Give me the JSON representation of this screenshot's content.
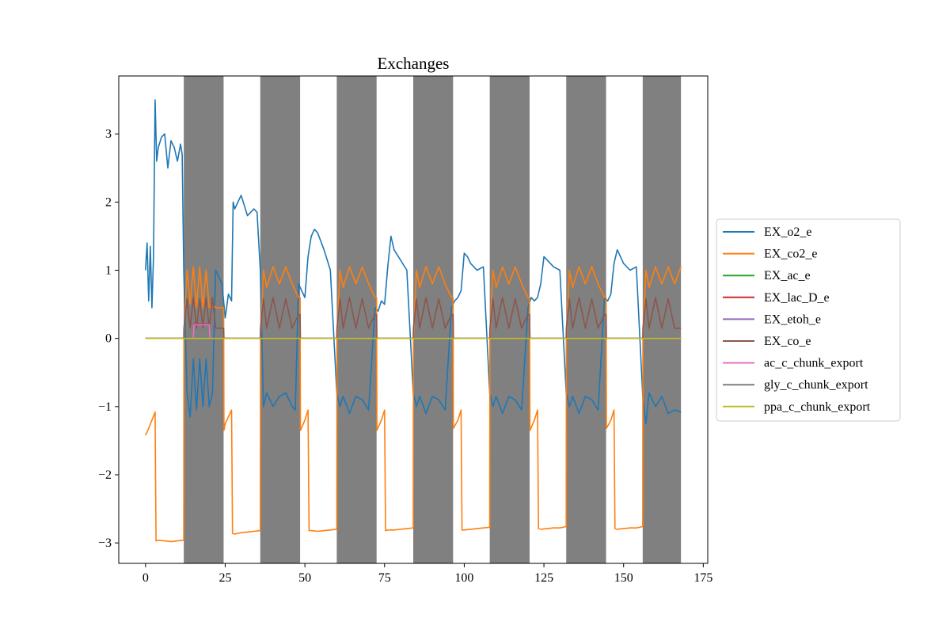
{
  "chart_data": {
    "type": "line",
    "title": "Exchanges",
    "xlabel": "",
    "ylabel": "",
    "xlim": [
      -8.4,
      176.4
    ],
    "ylim": [
      -3.3,
      3.85
    ],
    "xticks": [
      0,
      25,
      50,
      75,
      100,
      125,
      150,
      175
    ],
    "yticks": [
      -3,
      -2,
      -1,
      0,
      1,
      2,
      3
    ],
    "xtick_labels": [
      "0",
      "25",
      "50",
      "75",
      "100",
      "125",
      "150",
      "175"
    ],
    "ytick_labels": [
      "−3",
      "−2",
      "−1",
      "0",
      "1",
      "2",
      "3"
    ],
    "grid": false,
    "legend_position": "center-right outside plot",
    "night_shading": {
      "color": "#808080",
      "intervals": [
        [
          12,
          24.5
        ],
        [
          36,
          48.5
        ],
        [
          60,
          72.5
        ],
        [
          84,
          96.5
        ],
        [
          108,
          120.5
        ],
        [
          132,
          144.5
        ],
        [
          156,
          168
        ]
      ]
    },
    "series": [
      {
        "name": "EX_o2_e",
        "color": "#1f77b4",
        "x": [
          0,
          0.5,
          1,
          1.5,
          2,
          2.5,
          3,
          3.5,
          4,
          5,
          6,
          7,
          8,
          9,
          10,
          11,
          11.5,
          12,
          13,
          14,
          15,
          16,
          17,
          18,
          19,
          20,
          21,
          22,
          24,
          25,
          26,
          27,
          27.5,
          28,
          30,
          32,
          34,
          35,
          36,
          37,
          38,
          40,
          42,
          44,
          46,
          47,
          48,
          50,
          51,
          52,
          53,
          54,
          56,
          58,
          60,
          61,
          62,
          64,
          66,
          68,
          70,
          72,
          73,
          74,
          75,
          76,
          77,
          78,
          80,
          82,
          84,
          85,
          86,
          88,
          90,
          92,
          94,
          96,
          97,
          98,
          99,
          100,
          101,
          102,
          104,
          106,
          108,
          109,
          110,
          112,
          114,
          116,
          118,
          120,
          121,
          122,
          123,
          124,
          125,
          126,
          128,
          130,
          132,
          133,
          134,
          136,
          138,
          140,
          142,
          144,
          145,
          146,
          147,
          148,
          149,
          150,
          152,
          154,
          156,
          157,
          158,
          160,
          162,
          164,
          166,
          168
        ],
        "y": [
          1.0,
          1.4,
          0.55,
          1.35,
          0.45,
          1.2,
          3.5,
          2.6,
          2.8,
          2.95,
          3.0,
          2.5,
          2.9,
          2.8,
          2.6,
          2.85,
          2.7,
          1.0,
          -0.8,
          -1.15,
          -0.3,
          -1.05,
          -0.3,
          -1.0,
          -0.3,
          -1.0,
          -0.8,
          1.0,
          0.8,
          0.3,
          0.65,
          0.55,
          2.0,
          1.9,
          2.1,
          1.8,
          1.9,
          1.85,
          1.0,
          -1.0,
          -0.8,
          -1.0,
          -0.85,
          -0.8,
          -1.0,
          -1.05,
          0.8,
          0.6,
          1.2,
          1.5,
          1.6,
          1.55,
          1.3,
          1.0,
          -0.8,
          -1.0,
          -0.85,
          -1.1,
          -0.85,
          -0.9,
          -1.05,
          0.45,
          0.4,
          0.55,
          0.5,
          1.05,
          1.5,
          1.3,
          1.15,
          1.0,
          -0.8,
          -1.0,
          -0.85,
          -1.1,
          -0.85,
          -0.9,
          -1.05,
          0.45,
          0.55,
          0.6,
          0.7,
          1.25,
          1.2,
          1.1,
          1.0,
          1.05,
          -0.8,
          -1.0,
          -0.85,
          -1.1,
          -0.85,
          -0.9,
          -1.05,
          0.45,
          0.6,
          0.55,
          0.6,
          0.8,
          1.2,
          1.15,
          1.05,
          1.0,
          -0.8,
          -1.0,
          -0.85,
          -1.1,
          -0.85,
          -0.9,
          -1.05,
          0.6,
          0.55,
          0.65,
          1.1,
          1.3,
          1.2,
          1.1,
          1.0,
          1.05,
          -0.85,
          -1.25,
          -0.8,
          -1.0,
          -0.85,
          -1.1,
          -1.05,
          -1.08
        ]
      },
      {
        "name": "EX_co2_e",
        "color": "#ff7f0e",
        "x": [
          0,
          1,
          2,
          3,
          3.3,
          4,
          6,
          8,
          10,
          12,
          12.05,
          13,
          14,
          15,
          16,
          17,
          18,
          19,
          20,
          21,
          22,
          24.5,
          24.6,
          25,
          26,
          27,
          27.3,
          28,
          30,
          32,
          34,
          36,
          36.05,
          37,
          38,
          40,
          42,
          44,
          46,
          48,
          48.5,
          48.6,
          50,
          51,
          51.3,
          52,
          54,
          56,
          58,
          60,
          60.05,
          61,
          62,
          64,
          66,
          68,
          70,
          72,
          72.5,
          72.6,
          74,
          75,
          75.3,
          76,
          78,
          80,
          82,
          84,
          84.05,
          85,
          86,
          88,
          90,
          92,
          94,
          96,
          96.5,
          96.6,
          98,
          99,
          99.3,
          100,
          102,
          104,
          106,
          108,
          108.05,
          109,
          110,
          112,
          114,
          116,
          118,
          120,
          120.5,
          120.6,
          122,
          123,
          123.3,
          124,
          126,
          128,
          130,
          132,
          132.05,
          133,
          134,
          136,
          138,
          140,
          142,
          144,
          144.5,
          144.6,
          146,
          147,
          147.3,
          148,
          150,
          152,
          154,
          156,
          156.05,
          157,
          158,
          160,
          162,
          164,
          166,
          168
        ],
        "y": [
          -1.42,
          -1.32,
          -1.2,
          -1.08,
          -2.97,
          -2.96,
          -2.97,
          -2.98,
          -2.97,
          -2.96,
          0.0,
          1.0,
          0.5,
          1.05,
          0.45,
          1.05,
          0.45,
          1.0,
          0.45,
          0.5,
          0.45,
          0.45,
          -1.35,
          -1.25,
          -1.15,
          -1.05,
          -2.86,
          -2.87,
          -2.85,
          -2.84,
          -2.83,
          -2.82,
          0.0,
          1.0,
          0.75,
          1.05,
          0.8,
          1.05,
          0.8,
          0.6,
          0.6,
          -1.35,
          -1.2,
          -1.05,
          -2.82,
          -2.82,
          -2.83,
          -2.82,
          -2.81,
          -2.8,
          0.0,
          1.0,
          0.75,
          1.05,
          0.8,
          1.05,
          0.8,
          0.6,
          0.6,
          -1.35,
          -1.2,
          -1.05,
          -2.82,
          -2.81,
          -2.81,
          -2.8,
          -2.79,
          -2.78,
          0.0,
          1.0,
          0.75,
          1.05,
          0.8,
          1.05,
          0.8,
          0.6,
          0.6,
          -1.32,
          -1.2,
          -1.05,
          -2.81,
          -2.81,
          -2.8,
          -2.79,
          -2.78,
          -2.77,
          0.0,
          1.0,
          0.75,
          1.05,
          0.8,
          1.05,
          0.8,
          0.6,
          0.6,
          -1.35,
          -1.2,
          -1.05,
          -2.79,
          -2.8,
          -2.79,
          -2.78,
          -2.78,
          -2.76,
          0.0,
          1.0,
          0.75,
          1.05,
          0.8,
          1.05,
          0.8,
          0.6,
          0.6,
          -1.32,
          -1.2,
          -1.05,
          -2.79,
          -2.8,
          -2.79,
          -2.78,
          -2.78,
          -2.76,
          0.0,
          1.0,
          0.75,
          1.05,
          0.8,
          1.05,
          0.8,
          1.05
        ]
      },
      {
        "name": "EX_ac_e",
        "color": "#2ca02c",
        "x": [
          0,
          168
        ],
        "y": [
          0,
          0
        ]
      },
      {
        "name": "EX_lac_D_e",
        "color": "#d62728",
        "x": [
          0,
          15,
          15.2,
          20,
          20.2,
          168
        ],
        "y": [
          0,
          0,
          0.21,
          0.21,
          0,
          0
        ]
      },
      {
        "name": "EX_etoh_e",
        "color": "#9467bd",
        "x": [
          0,
          15,
          15.2,
          20,
          20.2,
          168
        ],
        "y": [
          0,
          0,
          0.19,
          0.19,
          0,
          0
        ]
      },
      {
        "name": "EX_co_e",
        "color": "#8c564b",
        "x": [
          0,
          12,
          12.05,
          13,
          14,
          15,
          16,
          17,
          18,
          19,
          20,
          21,
          22,
          24.5,
          24.6,
          36,
          36.05,
          37,
          38,
          40,
          42,
          44,
          46,
          48,
          48.5,
          48.6,
          60,
          60.05,
          61,
          62,
          64,
          66,
          68,
          70,
          72,
          72.5,
          72.6,
          84,
          84.05,
          85,
          86,
          88,
          90,
          92,
          94,
          96,
          96.5,
          96.6,
          108,
          108.05,
          109,
          110,
          112,
          114,
          116,
          118,
          120,
          120.5,
          120.6,
          132,
          132.05,
          133,
          134,
          136,
          138,
          140,
          142,
          144,
          144.5,
          144.6,
          156,
          156.05,
          157,
          158,
          160,
          162,
          164,
          166,
          168
        ],
        "y": [
          0,
          0,
          0.15,
          0.58,
          0.15,
          0.6,
          0.15,
          0.58,
          0.15,
          0.6,
          0.15,
          0.6,
          0.15,
          0.15,
          0,
          0,
          0.15,
          0.58,
          0.15,
          0.6,
          0.15,
          0.58,
          0.15,
          0.35,
          0.35,
          0,
          0,
          0.15,
          0.58,
          0.15,
          0.6,
          0.15,
          0.58,
          0.15,
          0.35,
          0.35,
          0,
          0,
          0.15,
          0.58,
          0.15,
          0.6,
          0.15,
          0.58,
          0.15,
          0.35,
          0.35,
          0,
          0,
          0.15,
          0.58,
          0.15,
          0.6,
          0.15,
          0.58,
          0.15,
          0.35,
          0.35,
          0,
          0,
          0.15,
          0.58,
          0.15,
          0.6,
          0.15,
          0.58,
          0.15,
          0.35,
          0.35,
          0,
          0,
          0.15,
          0.58,
          0.15,
          0.6,
          0.15,
          0.58,
          0.15,
          0.15
        ]
      },
      {
        "name": "ac_c_chunk_export",
        "color": "#e377c2",
        "x": [
          0,
          15,
          15.2,
          20,
          20.2,
          168
        ],
        "y": [
          0,
          0,
          0.2,
          0.2,
          0,
          0
        ]
      },
      {
        "name": "gly_c_chunk_export",
        "color": "#7f7f7f",
        "x": [
          0,
          168
        ],
        "y": [
          0,
          0
        ]
      },
      {
        "name": "ppa_c_chunk_export",
        "color": "#bcbd22",
        "x": [
          0,
          168
        ],
        "y": [
          0,
          0
        ]
      }
    ]
  }
}
